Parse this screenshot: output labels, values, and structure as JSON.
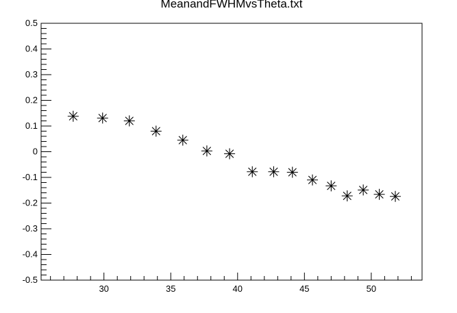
{
  "chart_data": {
    "type": "scatter",
    "title": "MeanandFWHMvsTheta.txt",
    "xlabel": "",
    "ylabel": "",
    "xlim": [
      25.3,
      53.8
    ],
    "ylim": [
      -0.5,
      0.5
    ],
    "x_ticks": [
      30,
      35,
      40,
      45,
      50
    ],
    "y_ticks": [
      -0.5,
      -0.4,
      -0.3,
      -0.2,
      -0.1,
      0,
      0.1,
      0.2,
      0.3,
      0.4,
      0.5
    ],
    "x_tick_labels": [
      "30",
      "35",
      "40",
      "45",
      "50"
    ],
    "y_tick_labels": [
      "-0.5",
      "-0.4",
      "-0.3",
      "-0.2",
      "-0.1",
      "0",
      "0.1",
      "0.2",
      "0.3",
      "0.4",
      "0.5"
    ],
    "grid": false,
    "marker": "asterisk",
    "marker_color": "#000000",
    "series": [
      {
        "points": [
          {
            "x": 27.7,
            "y": 0.138
          },
          {
            "x": 29.9,
            "y": 0.131
          },
          {
            "x": 31.9,
            "y": 0.12
          },
          {
            "x": 33.9,
            "y": 0.08
          },
          {
            "x": 35.9,
            "y": 0.045
          },
          {
            "x": 37.7,
            "y": 0.003
          },
          {
            "x": 39.4,
            "y": -0.008
          },
          {
            "x": 41.1,
            "y": -0.078
          },
          {
            "x": 42.7,
            "y": -0.078
          },
          {
            "x": 44.1,
            "y": -0.08
          },
          {
            "x": 45.6,
            "y": -0.11
          },
          {
            "x": 47.0,
            "y": -0.133
          },
          {
            "x": 48.2,
            "y": -0.172
          },
          {
            "x": 49.4,
            "y": -0.149
          },
          {
            "x": 50.6,
            "y": -0.166
          },
          {
            "x": 51.8,
            "y": -0.174
          }
        ]
      }
    ]
  }
}
